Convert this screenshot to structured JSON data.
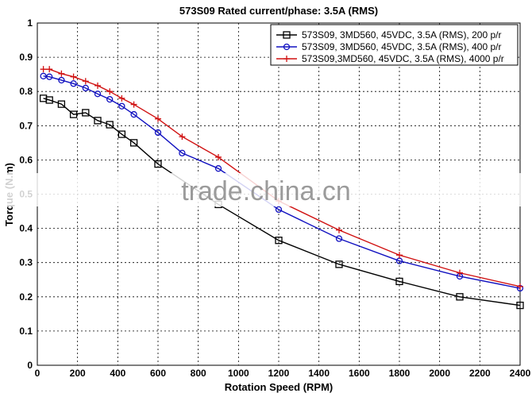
{
  "chart_data": {
    "type": "line",
    "title": "573S09 Rated current/phase: 3.5A (RMS)",
    "xlabel": "Rotation Speed (RPM)",
    "ylabel": "Torque (N.m)",
    "xlim": [
      0,
      2400
    ],
    "ylim": [
      0,
      1
    ],
    "xticks": [
      0,
      200,
      400,
      600,
      800,
      1000,
      1200,
      1400,
      1600,
      1800,
      2000,
      2200,
      2400
    ],
    "yticks": [
      0,
      0.1,
      0.2,
      0.3,
      0.4,
      0.5,
      0.6,
      0.7,
      0.8,
      0.9,
      1
    ],
    "grid": true,
    "legend_position": "top-right",
    "watermark": "trade.china.cn",
    "series": [
      {
        "name": "573S09, 3MD560, 45VDC, 3.5A (RMS), 200 p/r",
        "color": "#000000",
        "marker": "square",
        "x": [
          30,
          60,
          120,
          180,
          240,
          300,
          360,
          420,
          480,
          600,
          900,
          1200,
          1500,
          1800,
          2100,
          2400
        ],
        "y": [
          0.78,
          0.775,
          0.763,
          0.733,
          0.738,
          0.715,
          0.703,
          0.675,
          0.65,
          0.588,
          0.47,
          0.365,
          0.295,
          0.245,
          0.2,
          0.175
        ]
      },
      {
        "name": "573S09, 3MD560, 45VDC, 3.5A (RMS), 400 p/r",
        "color": "#1010c0",
        "marker": "circle",
        "x": [
          30,
          60,
          120,
          180,
          240,
          300,
          360,
          420,
          480,
          600,
          720,
          900,
          1200,
          1500,
          1800,
          2100,
          2400
        ],
        "y": [
          0.845,
          0.843,
          0.833,
          0.823,
          0.81,
          0.793,
          0.777,
          0.757,
          0.733,
          0.68,
          0.62,
          0.575,
          0.455,
          0.37,
          0.305,
          0.26,
          0.225
        ]
      },
      {
        "name": "573S09,3MD560, 45VDC, 3.5A (RMS), 4000 p/r",
        "color": "#d01010",
        "marker": "plus",
        "x": [
          30,
          60,
          120,
          180,
          240,
          300,
          360,
          420,
          480,
          600,
          720,
          900,
          1200,
          1500,
          1800,
          2100,
          2400
        ],
        "y": [
          0.865,
          0.865,
          0.852,
          0.843,
          0.83,
          0.817,
          0.8,
          0.78,
          0.762,
          0.72,
          0.668,
          0.608,
          0.48,
          0.395,
          0.322,
          0.27,
          0.23
        ]
      }
    ]
  }
}
